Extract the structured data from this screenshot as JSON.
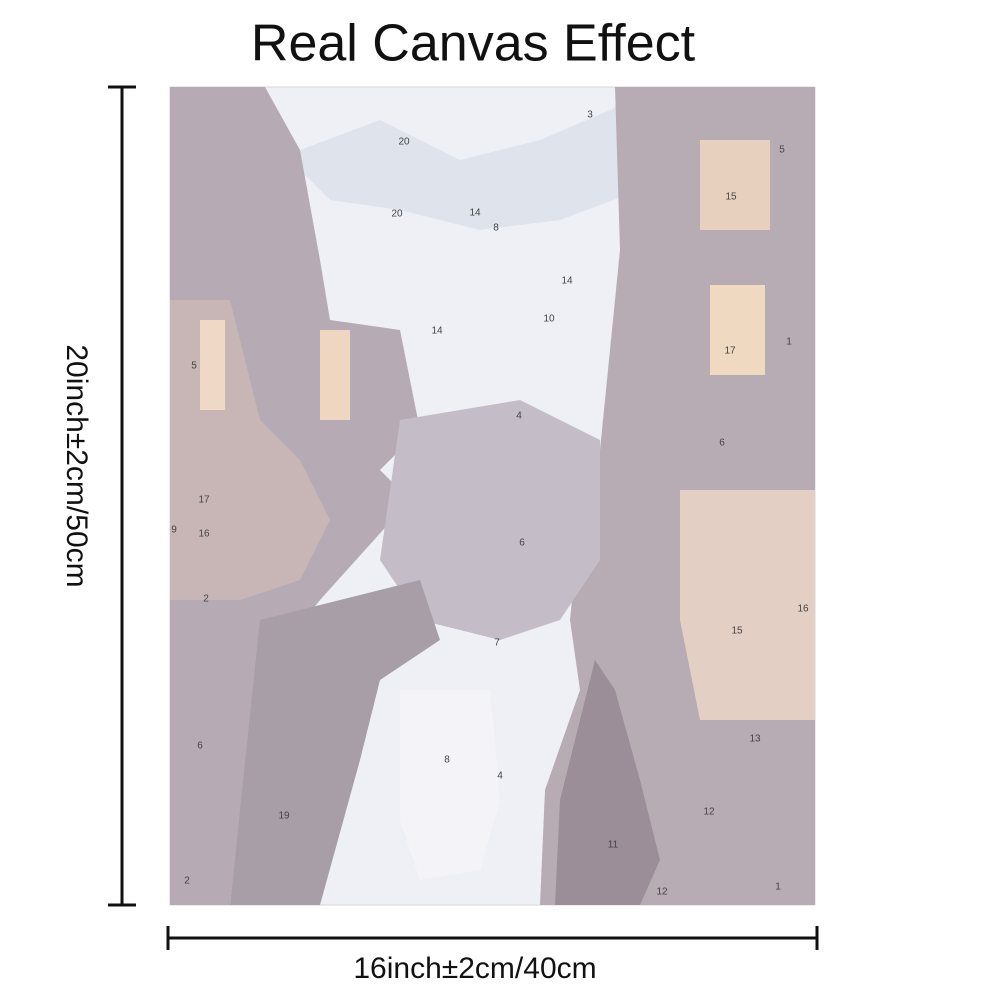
{
  "header": {
    "title": "Real Canvas Effect"
  },
  "dimensions": {
    "height": "20inch±2cm/50cm",
    "width": "16inch±2cm/40cm"
  },
  "painting_numbers": [
    "3",
    "20",
    "20",
    "14",
    "8",
    "14",
    "14",
    "10",
    "4",
    "5",
    "17",
    "16",
    "2",
    "6",
    "19",
    "8",
    "4",
    "7",
    "6",
    "13",
    "16",
    "15",
    "17",
    "15",
    "5",
    "1",
    "6",
    "12",
    "1",
    "9",
    "2",
    "11",
    "12"
  ]
}
